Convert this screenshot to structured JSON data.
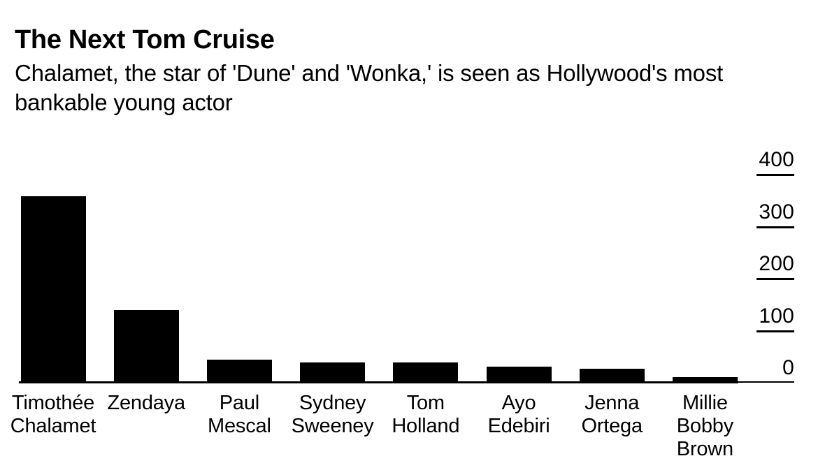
{
  "header": {
    "title": "The Next Tom Cruise",
    "subtitle_lines": [
      "Chalamet, the star of 'Dune' and 'Wonka,' is seen as Hollywood's most",
      "bankable young actor"
    ]
  },
  "chart_data": {
    "type": "bar",
    "title": "The Next Tom Cruise",
    "subtitle": "Chalamet, the star of 'Dune' and 'Wonka,' is seen as Hollywood's most bankable young actor",
    "categories": [
      "Timothée Chalamet",
      "Zendaya",
      "Paul Mescal",
      "Sydney Sweeney",
      "Tom Holland",
      "Ayo Edebiri",
      "Jenna Ortega",
      "Millie Bobby Brown"
    ],
    "category_lines": [
      [
        "Timothée",
        "Chalamet"
      ],
      [
        "Zendaya"
      ],
      [
        "Paul",
        "Mescal"
      ],
      [
        "Sydney",
        "Sweeney"
      ],
      [
        "Tom",
        "Holland"
      ],
      [
        "Ayo",
        "Edebiri"
      ],
      [
        "Jenna",
        "Ortega"
      ],
      [
        "Millie",
        "Bobby",
        "Brown"
      ]
    ],
    "values": [
      359,
      140,
      44,
      39,
      39,
      31,
      27,
      11
    ],
    "y_ticks": [
      0,
      100,
      200,
      300,
      400
    ],
    "ylim": [
      0,
      400
    ],
    "xlabel": "",
    "ylabel": "",
    "bar_color": "#000000",
    "text_color": "#000000",
    "background_color": "#ffffff",
    "axis_side": "right",
    "grid": false,
    "legend": false
  }
}
